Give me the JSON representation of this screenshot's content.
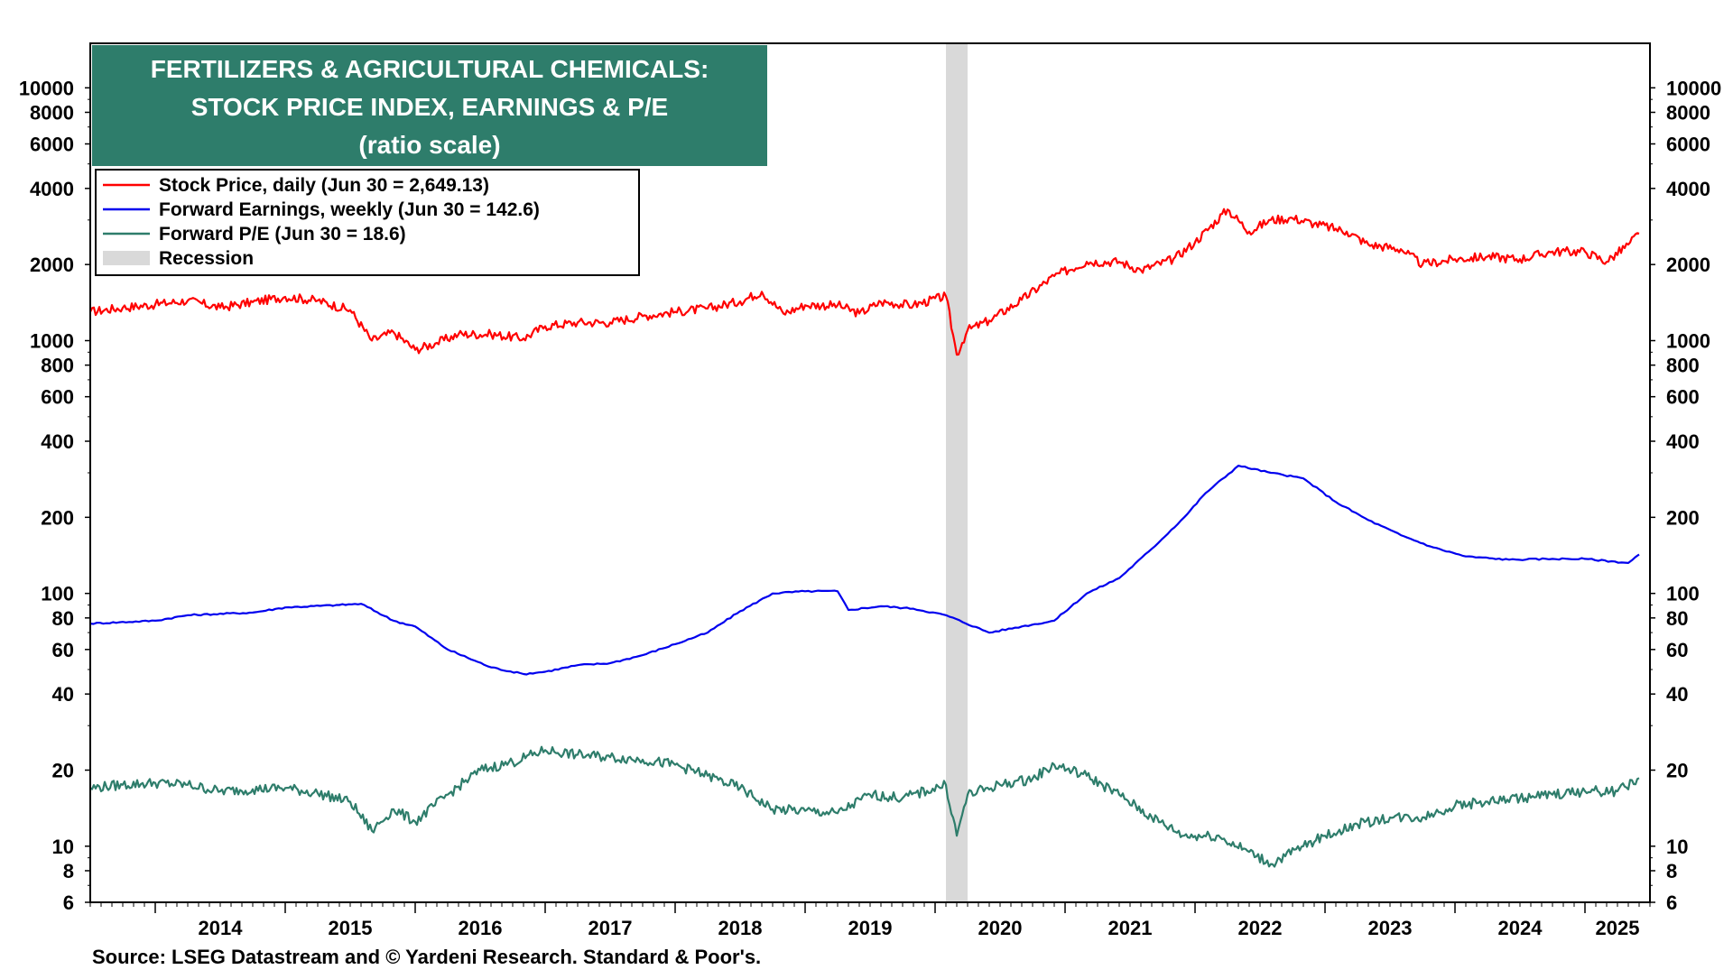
{
  "chart_data": {
    "type": "line",
    "title": [
      "FERTILIZERS & AGRICULTURAL CHEMICALS:",
      "STOCK PRICE INDEX, EARNINGS & P/E",
      "(ratio scale)"
    ],
    "y_scale": "log",
    "ylim": [
      6,
      15000
    ],
    "x_range": [
      "2013-07",
      "2025-07"
    ],
    "y_ticks": [
      10000,
      8000,
      6000,
      4000,
      2000,
      1000,
      800,
      600,
      400,
      200,
      100,
      80,
      60,
      40,
      20,
      10,
      8,
      6
    ],
    "y_tick_labels": [
      "10000",
      "8000",
      "6000",
      "4000",
      "2000",
      "1000",
      "800",
      "600",
      "400",
      "200",
      "100",
      "80",
      "60",
      "40",
      "20",
      "10",
      "8",
      "6"
    ],
    "x_ticks": [
      "2014",
      "2015",
      "2016",
      "2017",
      "2018",
      "2019",
      "2020",
      "2021",
      "2022",
      "2023",
      "2024",
      "2025"
    ],
    "legend_position": "top-left",
    "recession": {
      "label": "Recession",
      "start": "2020-02",
      "end": "2020-04",
      "color": "#d9d9d9"
    },
    "series": [
      {
        "name": "Stock Price, daily (Jun 30 = 2,649.13)",
        "color": "#ff0000",
        "points": [
          [
            "2013-07",
            1300
          ],
          [
            "2013-10",
            1350
          ],
          [
            "2014-01",
            1390
          ],
          [
            "2014-04",
            1440
          ],
          [
            "2014-07",
            1350
          ],
          [
            "2014-10",
            1420
          ],
          [
            "2015-01",
            1490
          ],
          [
            "2015-04",
            1440
          ],
          [
            "2015-07",
            1320
          ],
          [
            "2015-09",
            1000
          ],
          [
            "2015-11",
            1080
          ],
          [
            "2016-01",
            920
          ],
          [
            "2016-03",
            980
          ],
          [
            "2016-05",
            1060
          ],
          [
            "2016-08",
            1060
          ],
          [
            "2016-11",
            1020
          ],
          [
            "2017-01",
            1140
          ],
          [
            "2017-04",
            1180
          ],
          [
            "2017-07",
            1180
          ],
          [
            "2017-10",
            1250
          ],
          [
            "2018-01",
            1300
          ],
          [
            "2018-04",
            1340
          ],
          [
            "2018-07",
            1430
          ],
          [
            "2018-09",
            1560
          ],
          [
            "2018-11",
            1280
          ],
          [
            "2019-01",
            1380
          ],
          [
            "2019-04",
            1380
          ],
          [
            "2019-06",
            1280
          ],
          [
            "2019-08",
            1420
          ],
          [
            "2019-11",
            1380
          ],
          [
            "2020-02",
            1500
          ],
          [
            "2020-03",
            880
          ],
          [
            "2020-04",
            1100
          ],
          [
            "2020-06",
            1200
          ],
          [
            "2020-09",
            1450
          ],
          [
            "2020-12",
            1800
          ],
          [
            "2021-03",
            2050
          ],
          [
            "2021-06",
            2050
          ],
          [
            "2021-08",
            1900
          ],
          [
            "2021-11",
            2100
          ],
          [
            "2022-01",
            2450
          ],
          [
            "2022-04",
            3300
          ],
          [
            "2022-06",
            2700
          ],
          [
            "2022-08",
            3000
          ],
          [
            "2022-10",
            3050
          ],
          [
            "2022-12",
            2900
          ],
          [
            "2023-03",
            2700
          ],
          [
            "2023-05",
            2400
          ],
          [
            "2023-08",
            2300
          ],
          [
            "2023-10",
            2000
          ],
          [
            "2024-01",
            2100
          ],
          [
            "2024-04",
            2150
          ],
          [
            "2024-07",
            2100
          ],
          [
            "2024-10",
            2250
          ],
          [
            "2025-01",
            2250
          ],
          [
            "2025-03",
            2050
          ],
          [
            "2025-05",
            2400
          ],
          [
            "2025-06",
            2650
          ]
        ]
      },
      {
        "name": "Forward Earnings, weekly (Jun 30 = 142.6)",
        "color": "#0000ee",
        "points": [
          [
            "2013-07",
            76
          ],
          [
            "2014-01",
            78
          ],
          [
            "2014-04",
            82
          ],
          [
            "2014-10",
            84
          ],
          [
            "2015-01",
            88
          ],
          [
            "2015-06",
            90
          ],
          [
            "2015-08",
            91
          ],
          [
            "2015-11",
            78
          ],
          [
            "2016-01",
            74
          ],
          [
            "2016-04",
            60
          ],
          [
            "2016-08",
            51
          ],
          [
            "2016-11",
            48
          ],
          [
            "2017-01",
            49
          ],
          [
            "2017-04",
            52
          ],
          [
            "2017-07",
            53
          ],
          [
            "2017-10",
            57
          ],
          [
            "2018-01",
            63
          ],
          [
            "2018-04",
            70
          ],
          [
            "2018-07",
            85
          ],
          [
            "2018-10",
            100
          ],
          [
            "2019-01",
            102
          ],
          [
            "2019-04",
            102
          ],
          [
            "2019-05",
            86
          ],
          [
            "2019-08",
            89
          ],
          [
            "2019-11",
            87
          ],
          [
            "2020-02",
            82
          ],
          [
            "2020-06",
            70
          ],
          [
            "2020-09",
            74
          ],
          [
            "2020-12",
            78
          ],
          [
            "2021-03",
            100
          ],
          [
            "2021-06",
            115
          ],
          [
            "2021-09",
            150
          ],
          [
            "2021-12",
            200
          ],
          [
            "2022-02",
            250
          ],
          [
            "2022-05",
            320
          ],
          [
            "2022-08",
            300
          ],
          [
            "2022-11",
            285
          ],
          [
            "2023-02",
            230
          ],
          [
            "2023-05",
            195
          ],
          [
            "2023-08",
            170
          ],
          [
            "2023-11",
            152
          ],
          [
            "2024-02",
            140
          ],
          [
            "2024-06",
            136
          ],
          [
            "2024-10",
            137
          ],
          [
            "2025-01",
            137
          ],
          [
            "2025-05",
            132
          ],
          [
            "2025-06",
            142.6
          ]
        ]
      },
      {
        "name": "Forward P/E (Jun 30 = 18.6)",
        "color": "#2e7d6b",
        "points": [
          [
            "2013-07",
            17
          ],
          [
            "2013-10",
            17.5
          ],
          [
            "2014-01",
            17.8
          ],
          [
            "2014-04",
            17.5
          ],
          [
            "2014-07",
            16.5
          ],
          [
            "2014-10",
            16.8
          ],
          [
            "2015-01",
            17
          ],
          [
            "2015-04",
            16.2
          ],
          [
            "2015-07",
            15
          ],
          [
            "2015-09",
            11.5
          ],
          [
            "2015-11",
            14
          ],
          [
            "2016-01",
            12.5
          ],
          [
            "2016-04",
            16
          ],
          [
            "2016-07",
            20
          ],
          [
            "2016-10",
            21.5
          ],
          [
            "2017-01",
            24
          ],
          [
            "2017-04",
            23
          ],
          [
            "2017-07",
            22.5
          ],
          [
            "2017-10",
            22
          ],
          [
            "2018-01",
            21
          ],
          [
            "2018-04",
            19
          ],
          [
            "2018-07",
            17
          ],
          [
            "2018-10",
            14
          ],
          [
            "2019-01",
            13.8
          ],
          [
            "2019-04",
            13.5
          ],
          [
            "2019-07",
            16
          ],
          [
            "2019-10",
            15.5
          ],
          [
            "2020-02",
            17.5
          ],
          [
            "2020-03",
            11
          ],
          [
            "2020-04",
            16
          ],
          [
            "2020-07",
            17.5
          ],
          [
            "2020-10",
            18.5
          ],
          [
            "2020-12",
            21
          ],
          [
            "2021-03",
            19
          ],
          [
            "2021-06",
            16
          ],
          [
            "2021-09",
            13
          ],
          [
            "2021-12",
            11
          ],
          [
            "2022-03",
            11
          ],
          [
            "2022-06",
            9.5
          ],
          [
            "2022-08",
            8.5
          ],
          [
            "2022-11",
            10
          ],
          [
            "2023-01",
            11
          ],
          [
            "2023-04",
            12.2
          ],
          [
            "2023-07",
            13
          ],
          [
            "2023-10",
            13
          ],
          [
            "2024-01",
            14.5
          ],
          [
            "2024-04",
            15
          ],
          [
            "2024-07",
            15.5
          ],
          [
            "2024-10",
            16
          ],
          [
            "2025-01",
            16.5
          ],
          [
            "2025-04",
            16.5
          ],
          [
            "2025-06",
            18.6
          ]
        ]
      }
    ],
    "source": "Source: LSEG Datastream and © Yardeni Research. Standard & Poor's."
  },
  "colors": {
    "title_box": "#2e7d6b",
    "recession": "#d9d9d9",
    "axis": "#000000"
  },
  "legend": {
    "stock": "Stock Price, daily (Jun 30 = 2,649.13)",
    "earnings": "Forward Earnings, weekly (Jun 30 = 142.6)",
    "pe": "Forward P/E (Jun 30 = 18.6)",
    "recession": "Recession"
  }
}
